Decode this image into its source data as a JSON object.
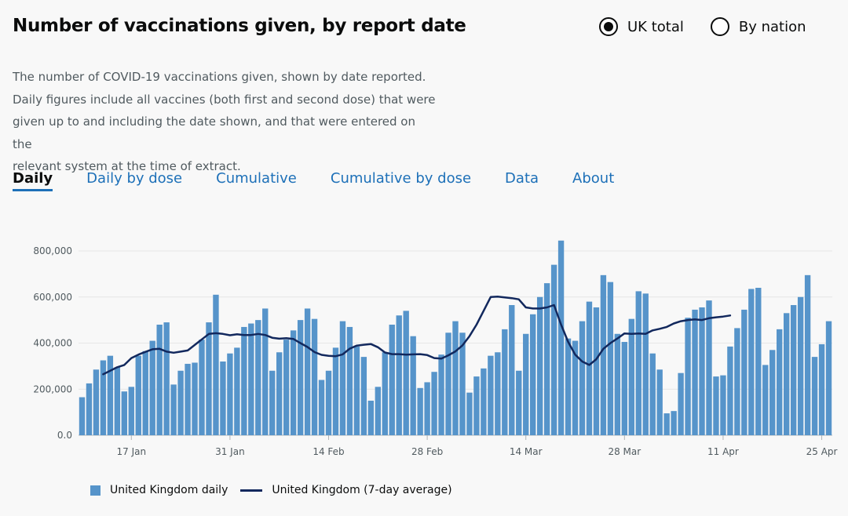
{
  "header": {
    "title": "Number of vaccinations given, by report date",
    "radio_options": [
      {
        "label": "UK total",
        "selected": true
      },
      {
        "label": "By nation",
        "selected": false
      }
    ]
  },
  "description": [
    "The number of COVID-19 vaccinations given, shown by date reported.",
    "Daily figures include all vaccines (both first and second dose) that were",
    "given up to and including the date shown, and that were entered on the",
    "relevant system at the time of extract."
  ],
  "tabs": [
    {
      "label": "Daily",
      "active": true
    },
    {
      "label": "Daily by dose",
      "active": false
    },
    {
      "label": "Cumulative",
      "active": false
    },
    {
      "label": "Cumulative by dose",
      "active": false
    },
    {
      "label": "Data",
      "active": false
    },
    {
      "label": "About",
      "active": false
    }
  ],
  "colors": {
    "bar": "#5694ca",
    "line": "#12285d",
    "link": "#1d70b8"
  },
  "chart_data": {
    "type": "bar",
    "x_start": "2021-01-10",
    "y_ticks": [
      "0.0",
      "200,000",
      "400,000",
      "600,000",
      "800,000"
    ],
    "ylim": [
      0,
      800000
    ],
    "x_tick_labels": [
      "17 Jan",
      "31 Jan",
      "14 Feb",
      "28 Feb",
      "14 Mar",
      "28 Mar",
      "11 Apr",
      "25 Apr"
    ],
    "x_tick_index": [
      7,
      21,
      35,
      49,
      63,
      77,
      91,
      105
    ],
    "grid": true,
    "legend_position": "bottom-left",
    "series": [
      {
        "name": "United Kingdom daily",
        "type": "bar",
        "values": [
          165000,
          225000,
          285000,
          325000,
          345000,
          295000,
          190000,
          210000,
          345000,
          365000,
          410000,
          480000,
          490000,
          220000,
          280000,
          310000,
          315000,
          415000,
          490000,
          610000,
          320000,
          355000,
          380000,
          470000,
          485000,
          500000,
          550000,
          280000,
          360000,
          415000,
          455000,
          500000,
          550000,
          505000,
          240000,
          280000,
          380000,
          495000,
          470000,
          385000,
          340000,
          150000,
          210000,
          360000,
          480000,
          520000,
          540000,
          430000,
          205000,
          230000,
          275000,
          350000,
          445000,
          495000,
          445000,
          185000,
          255000,
          290000,
          345000,
          360000,
          460000,
          565000,
          280000,
          440000,
          525000,
          600000,
          660000,
          740000,
          845000,
          420000,
          410000,
          495000,
          580000,
          555000,
          695000,
          665000,
          440000,
          405000,
          505000,
          625000,
          615000,
          355000,
          285000,
          95000,
          105000,
          270000,
          510000,
          545000,
          555000,
          585000,
          255000,
          260000,
          385000,
          465000,
          545000,
          635000,
          640000,
          305000,
          370000,
          460000,
          530000,
          565000,
          600000,
          695000,
          340000,
          395000,
          495000
        ]
      },
      {
        "name": "United Kingdom (7-day average)",
        "type": "line",
        "start_index": 3,
        "values": [
          265000,
          280000,
          295000,
          305000,
          335000,
          350000,
          362000,
          373000,
          375000,
          363000,
          358000,
          363000,
          368000,
          392000,
          416000,
          440000,
          443000,
          440000,
          434000,
          438000,
          435000,
          435000,
          440000,
          435000,
          423000,
          419000,
          421000,
          418000,
          400000,
          383000,
          361000,
          349000,
          345000,
          343000,
          351000,
          376000,
          389000,
          393000,
          396000,
          382000,
          359000,
          352000,
          352000,
          350000,
          351000,
          352000,
          348000,
          335000,
          333000,
          347000,
          364000,
          390000,
          430000,
          480000,
          540000,
          600000,
          602000,
          598000,
          595000,
          590000,
          555000,
          550000,
          550000,
          555000,
          565000,
          480000,
          405000,
          350000,
          320000,
          305000,
          330000,
          375000,
          400000,
          420000,
          442000,
          440000,
          442000,
          440000,
          455000,
          462000,
          470000,
          485000,
          495000,
          500000,
          503000,
          500000,
          508000,
          512000,
          515000,
          520000
        ]
      }
    ]
  }
}
